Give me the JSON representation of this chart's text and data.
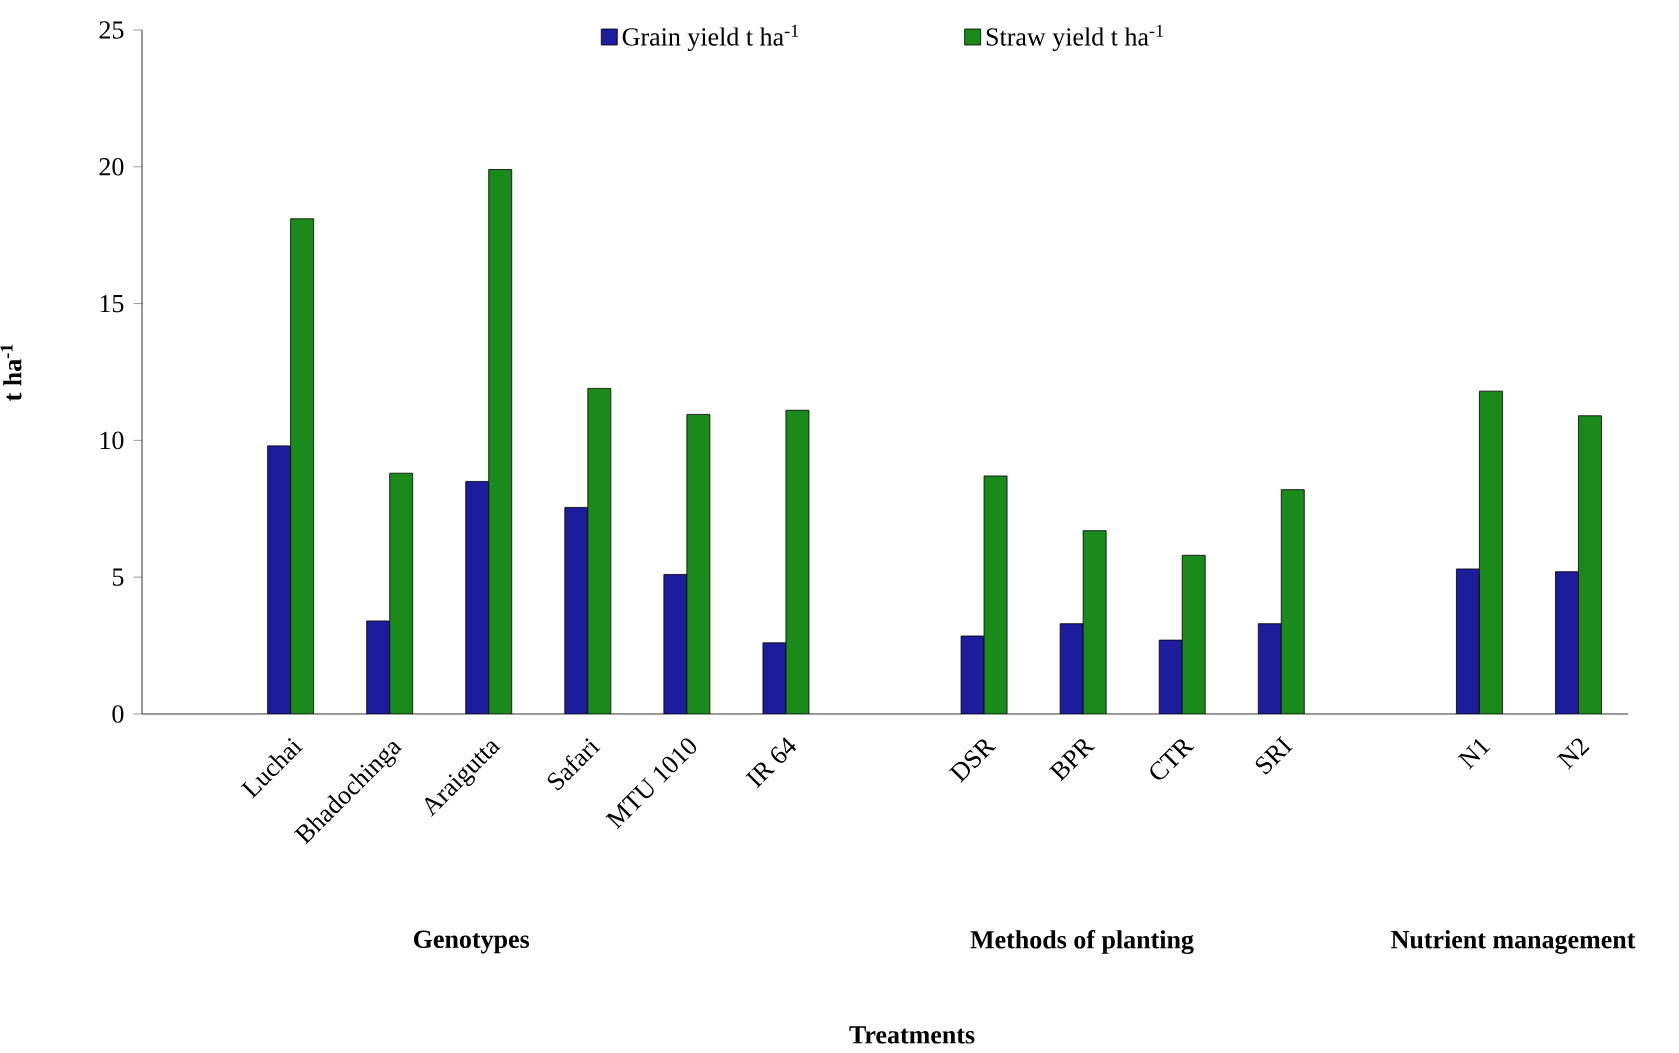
{
  "chart_data": {
    "type": "bar",
    "categories": [
      null,
      "Luchai",
      "Bhadochinga",
      "Araigutta",
      "Safari",
      "MTU 1010",
      "IR 64",
      null,
      "DSR",
      "BPR",
      "CTR",
      "SRI",
      null,
      "N1",
      "N2"
    ],
    "series": [
      {
        "name": "Grain yield t ha$^{-1}$",
        "color": "#1c1c9c",
        "values": [
          null,
          9.8,
          3.4,
          8.5,
          7.55,
          5.1,
          2.6,
          null,
          2.85,
          3.3,
          2.7,
          3.3,
          null,
          5.3,
          5.2
        ]
      },
      {
        "name": "Straw yield t ha$^{-1}$",
        "color": "#1a8a1a",
        "values": [
          null,
          18.1,
          8.8,
          19.9,
          11.9,
          10.95,
          11.1,
          null,
          8.7,
          6.7,
          5.8,
          8.2,
          null,
          11.8,
          10.9
        ]
      }
    ],
    "ylim": [
      0,
      25
    ],
    "yticks": [
      0,
      5,
      10,
      15,
      20,
      25
    ],
    "ylabel": "t ha$^{-1}$",
    "annotations": [
      "Genotypes",
      "Methods of planting",
      "Nutrient management",
      "Treatments"
    ],
    "legend": "top",
    "grid": false
  }
}
